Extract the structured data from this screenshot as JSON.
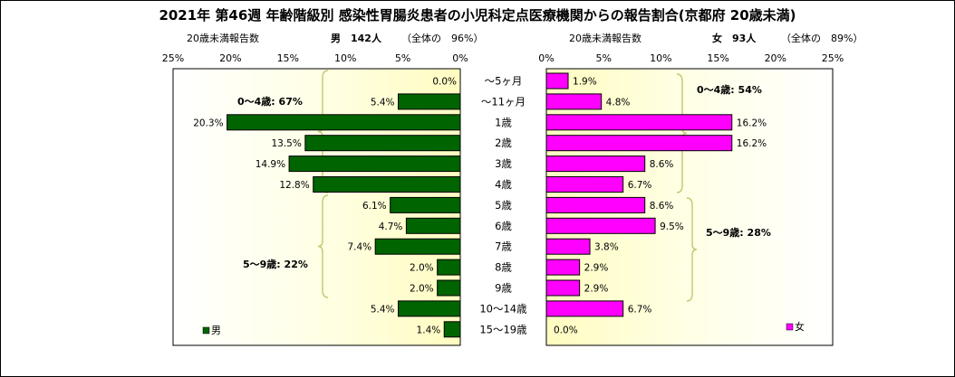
{
  "chart_data": {
    "type": "bar",
    "title": "2021年 第46週 年齢階級別 感染性胃腸炎患者の小児科定点医療機関からの報告割合(京都府 20歳未満)",
    "categories": [
      "～5ヶ月",
      "～11ヶ月",
      "1歳",
      "2歳",
      "3歳",
      "4歳",
      "5歳",
      "6歳",
      "7歳",
      "8歳",
      "9歳",
      "10～14歳",
      "15～19歳"
    ],
    "xlim": [
      0,
      25
    ],
    "ticks": [
      "25%",
      "20%",
      "15%",
      "10%",
      "5%",
      "0%"
    ],
    "ticks_right": [
      "0%",
      "5%",
      "10%",
      "15%",
      "20%",
      "25%"
    ],
    "colors": {
      "male": "#006400",
      "female": "#ff00ff",
      "background_left": "#ffffc0",
      "bracket": "#c8c878"
    },
    "male": {
      "subtitle_label": "20歳未満報告数",
      "subtitle_count": "男　142人",
      "subtitle_note": "（全体の　96%）",
      "legend": "男",
      "values": [
        0.0,
        5.4,
        20.3,
        13.5,
        14.9,
        12.8,
        6.1,
        4.7,
        7.4,
        2.0,
        2.0,
        5.4,
        1.4
      ],
      "labels": [
        "0.0%",
        "5.4%",
        "20.3%",
        "13.5%",
        "14.9%",
        "12.8%",
        "6.1%",
        "4.7%",
        "7.4%",
        "2.0%",
        "2.0%",
        "5.4%",
        "1.4%"
      ],
      "group1_label": "0～4歳: 67%",
      "group2_label": "5～9歳: 22%"
    },
    "female": {
      "subtitle_label": "20歳未満報告数",
      "subtitle_count": "女　93人",
      "subtitle_note": "（全体の　89%）",
      "legend": "女",
      "values": [
        1.9,
        4.8,
        16.2,
        16.2,
        8.6,
        6.7,
        8.6,
        9.5,
        3.8,
        2.9,
        2.9,
        6.7,
        0.0
      ],
      "labels": [
        "1.9%",
        "4.8%",
        "16.2%",
        "16.2%",
        "8.6%",
        "6.7%",
        "8.6%",
        "9.5%",
        "3.8%",
        "2.9%",
        "2.9%",
        "6.7%",
        "0.0%"
      ],
      "group1_label": "0～4歳: 54%",
      "group2_label": "5～9歳: 28%"
    }
  }
}
